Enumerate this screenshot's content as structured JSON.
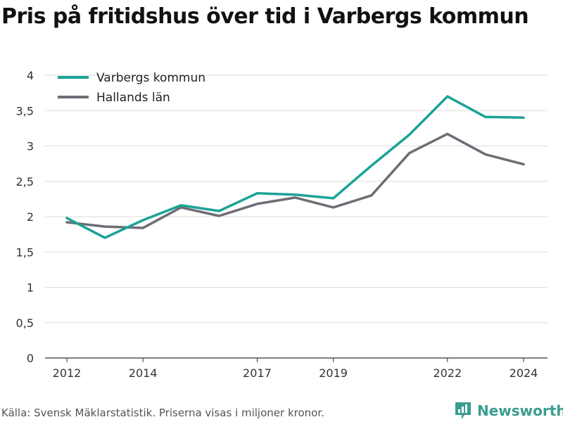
{
  "title": "Pris på fritidshus över tid i Varbergs kommun",
  "source_note": "Källa: Svensk Mäklarstatistik. Priserna visas i miljoner kronor.",
  "brand": {
    "name": "Newsworthy",
    "icon": "newsworthy-logo-icon",
    "color": "#3a9d8f"
  },
  "chart_data": {
    "type": "line",
    "xlim": [
      2012,
      2024
    ],
    "ylim": [
      0,
      4
    ],
    "x_ticks": [
      2012,
      2014,
      2017,
      2019,
      2022,
      2024
    ],
    "x_tick_labels": [
      "2012",
      "2014",
      "2017",
      "2019",
      "2022",
      "2024"
    ],
    "y_ticks": [
      0,
      0.5,
      1,
      1.5,
      2,
      2.5,
      3,
      3.5,
      4
    ],
    "y_tick_labels": [
      "0",
      "0,5",
      "1",
      "1,5",
      "2",
      "2,5",
      "3",
      "3,5",
      "4"
    ],
    "grid": "horizontal",
    "legend_position": "top-left",
    "x": [
      2012,
      2013,
      2014,
      2015,
      2016,
      2017,
      2018,
      2019,
      2020,
      2021,
      2022,
      2023,
      2024
    ],
    "series": [
      {
        "name": "Varbergs kommun",
        "color": "#1aa396",
        "values": [
          1.98,
          1.7,
          1.95,
          2.16,
          2.08,
          2.33,
          2.31,
          2.26,
          2.72,
          3.16,
          3.7,
          3.41,
          3.4
        ]
      },
      {
        "name": "Hallands län",
        "color": "#6e6d75",
        "values": [
          1.92,
          1.86,
          1.84,
          2.13,
          2.01,
          2.18,
          2.27,
          2.13,
          2.3,
          2.9,
          3.17,
          2.88,
          2.74
        ]
      }
    ]
  }
}
